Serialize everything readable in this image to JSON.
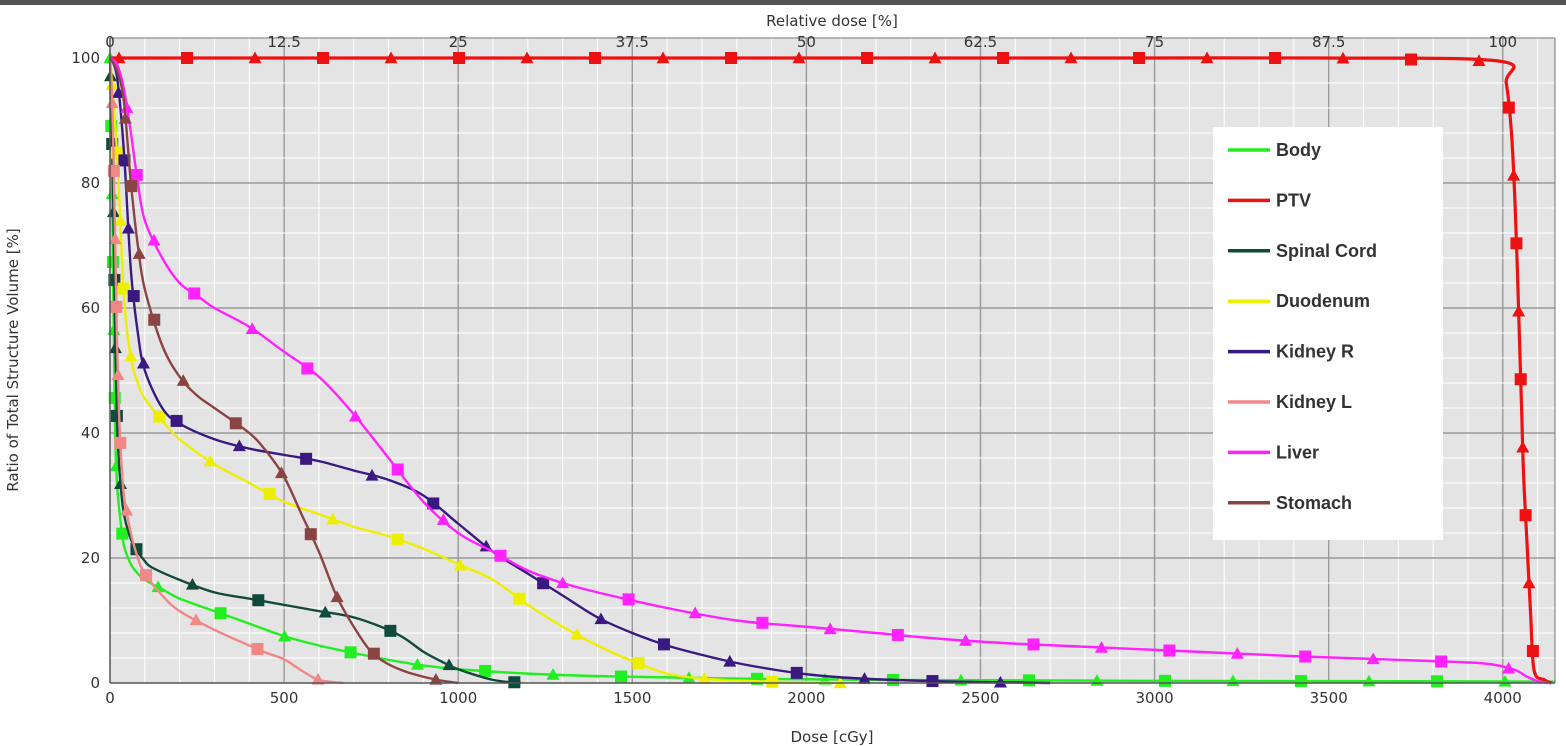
{
  "chart_data": {
    "type": "line",
    "xlabel": "Dose [cGy]",
    "ylabel": "Ratio of Total Structure Volume [%]",
    "x2label": "Relative dose [%]",
    "xlim": [
      0,
      4150
    ],
    "ylim": [
      0,
      100
    ],
    "xticks": [
      0,
      500,
      1000,
      1500,
      2000,
      2500,
      3000,
      3500,
      4000
    ],
    "xtick_labels": [
      "0",
      "500",
      "1000",
      "1500",
      "2000",
      "2500",
      "3000",
      "3500",
      "4000"
    ],
    "yticks": [
      0,
      20,
      40,
      60,
      80,
      100
    ],
    "ytick_labels": [
      "0",
      "20",
      "40",
      "60",
      "80",
      "100"
    ],
    "x2ticks_dose": [
      0,
      500,
      1000,
      1500,
      2000,
      2500,
      3000,
      3500,
      4000
    ],
    "x2tick_labels": [
      "0",
      "12.5",
      "25",
      "37.5",
      "50",
      "62.5",
      "75",
      "87.5",
      "100"
    ],
    "grid": true,
    "legend_position": "right",
    "series": [
      {
        "name": "Body",
        "color": "#22ee22",
        "x": [
          0,
          5,
          10,
          15,
          20,
          30,
          40,
          60,
          80,
          100,
          150,
          200,
          300,
          400,
          500,
          600,
          700,
          800,
          900,
          1000,
          1200,
          1400,
          1600,
          1800,
          2000,
          2200,
          2500,
          3000,
          3500,
          4000,
          4150
        ],
        "y": [
          100,
          85,
          60,
          40,
          32,
          26,
          22,
          19,
          17.5,
          16.5,
          15,
          13.5,
          11.5,
          9.5,
          7.5,
          6,
          4.8,
          3.7,
          2.8,
          2.2,
          1.5,
          1.1,
          0.9,
          0.7,
          0.6,
          0.5,
          0.45,
          0.35,
          0.3,
          0.25,
          0.2
        ]
      },
      {
        "name": "PTV",
        "color": "#ee1111",
        "x": [
          0,
          500,
          1000,
          1500,
          2000,
          2500,
          3000,
          3500,
          3990,
          4010,
          4025,
          4035,
          4042,
          4048,
          4054,
          4060,
          4070,
          4080,
          4090,
          4120,
          4140
        ],
        "y": [
          100,
          100,
          100,
          100,
          100,
          100,
          100,
          100,
          99.5,
          96,
          88,
          77,
          66,
          55,
          44,
          33,
          22,
          11,
          2,
          0.5,
          0
        ]
      },
      {
        "name": "Spinal Cord",
        "color": "#0f4a3a",
        "x": [
          0,
          5,
          10,
          15,
          20,
          25,
          30,
          40,
          60,
          80,
          100,
          120,
          200,
          300,
          400,
          500,
          600,
          700,
          800,
          850,
          900,
          950,
          1000,
          1100,
          1180
        ],
        "y": [
          100,
          90,
          75,
          55,
          42,
          36,
          32,
          27,
          23,
          21,
          19.5,
          18.5,
          16.5,
          14.5,
          13.5,
          12.5,
          11.5,
          10.5,
          8.5,
          7,
          5,
          3.5,
          2.2,
          0.5,
          0
        ]
      },
      {
        "name": "Duodenum",
        "color": "#eeee00",
        "x": [
          0,
          20,
          40,
          60,
          80,
          100,
          150,
          200,
          300,
          400,
          500,
          600,
          700,
          800,
          900,
          1000,
          1100,
          1200,
          1300,
          1400,
          1500,
          1600,
          1700,
          1800,
          1900,
          2000,
          2100
        ],
        "y": [
          100,
          85,
          62,
          52,
          48,
          45.5,
          42,
          39,
          35,
          32,
          29,
          27,
          25,
          23.5,
          21.5,
          19,
          16.5,
          12.5,
          9,
          6,
          3.5,
          1.5,
          0.7,
          0.4,
          0.2,
          0.1,
          0
        ]
      },
      {
        "name": "Kidney R",
        "color": "#3a1a80",
        "x": [
          0,
          20,
          40,
          60,
          80,
          100,
          150,
          200,
          300,
          400,
          500,
          600,
          700,
          800,
          900,
          1000,
          1100,
          1200,
          1300,
          1400,
          1500,
          1600,
          1700,
          1800,
          1900,
          2000,
          2100,
          2200,
          2300,
          2400,
          2500,
          2600,
          2700
        ],
        "y": [
          100,
          97,
          85,
          66,
          56,
          50,
          44,
          41.5,
          39,
          37.5,
          36.5,
          35.5,
          34,
          32.5,
          30,
          25.5,
          21,
          17.5,
          14,
          10.5,
          8,
          6,
          4.5,
          3.2,
          2.2,
          1.4,
          0.9,
          0.6,
          0.4,
          0.25,
          0.15,
          0.08,
          0
        ]
      },
      {
        "name": "Kidney L",
        "color": "#f08888",
        "x": [
          0,
          5,
          10,
          15,
          20,
          25,
          30,
          40,
          60,
          80,
          100,
          150,
          200,
          300,
          400,
          450,
          500,
          550,
          600,
          670
        ],
        "y": [
          100,
          95,
          85,
          70,
          55,
          45,
          38,
          30,
          24,
          20,
          17.5,
          14,
          11.5,
          8.5,
          6,
          4.8,
          3.8,
          2,
          0.5,
          0
        ]
      },
      {
        "name": "Liver",
        "color": "#ff22ff",
        "x": [
          0,
          20,
          40,
          60,
          80,
          100,
          150,
          200,
          250,
          300,
          400,
          500,
          600,
          700,
          800,
          900,
          1000,
          1100,
          1200,
          1300,
          1400,
          1600,
          1800,
          2000,
          2200,
          2400,
          2600,
          2800,
          3000,
          3200,
          3400,
          3600,
          3800,
          3950,
          4030,
          4070,
          4100,
          4130
        ],
        "y": [
          100,
          99,
          95,
          88,
          80,
          74,
          68,
          64,
          62,
          60,
          57,
          53,
          49,
          43,
          36,
          29,
          24,
          21,
          18,
          16,
          14.5,
          12,
          10,
          9,
          8,
          7,
          6.3,
          5.8,
          5.3,
          4.8,
          4.3,
          3.9,
          3.5,
          3.1,
          2.2,
          1,
          0.3,
          0
        ]
      },
      {
        "name": "Stomach",
        "color": "#8b4444",
        "x": [
          0,
          20,
          40,
          60,
          80,
          100,
          150,
          200,
          250,
          300,
          400,
          450,
          500,
          550,
          600,
          650,
          700,
          750,
          800,
          850,
          900,
          950,
          1000
        ],
        "y": [
          100,
          98,
          93,
          80,
          70,
          63,
          54,
          49,
          46,
          44,
          40,
          37,
          33,
          27,
          21,
          14,
          9,
          5,
          3,
          1.8,
          1,
          0.4,
          0
        ]
      }
    ]
  }
}
